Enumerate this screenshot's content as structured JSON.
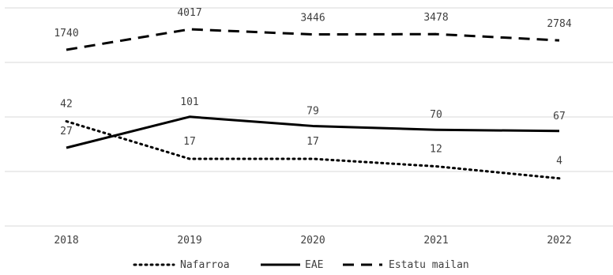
{
  "chart_data": {
    "type": "line",
    "title": "",
    "xlabel": "",
    "ylabel": "",
    "categories": [
      "2018",
      "2019",
      "2020",
      "2021",
      "2022"
    ],
    "series": [
      {
        "name": "Nafarroa",
        "values": [
          42,
          17,
          17,
          12,
          4
        ],
        "style": "dotted",
        "color": "#000000"
      },
      {
        "name": "EAE",
        "values": [
          27,
          101,
          79,
          70,
          67
        ],
        "style": "solid",
        "color": "#000000"
      },
      {
        "name": "Estatu mailan",
        "values": [
          1740,
          4017,
          3446,
          3478,
          2784
        ],
        "style": "dashed",
        "color": "#000000"
      }
    ],
    "grid": "horizontal",
    "legend": "bottom",
    "y_axis_labels": false
  }
}
